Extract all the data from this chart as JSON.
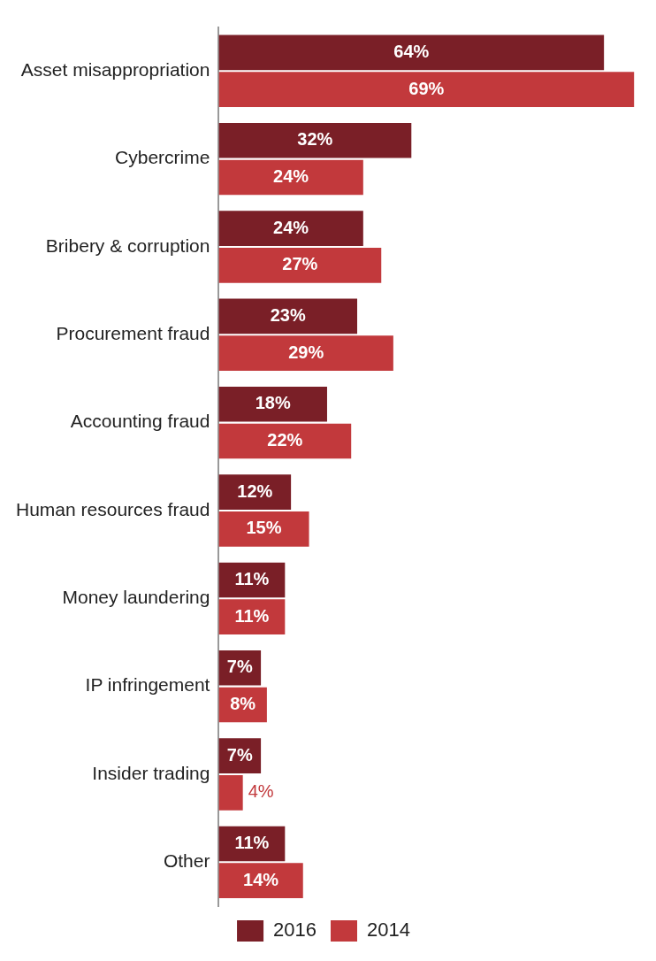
{
  "chart_data": {
    "type": "bar",
    "orientation": "horizontal",
    "categories": [
      "Asset misappropriation",
      "Cybercrime",
      "Bribery & corruption",
      "Procurement fraud",
      "Accounting fraud",
      "Human resources fraud",
      "Money laundering",
      "IP infringement",
      "Insider trading",
      "Other"
    ],
    "series": [
      {
        "name": "2016",
        "color": "#7a1f27",
        "values": [
          64,
          32,
          24,
          23,
          18,
          12,
          11,
          7,
          7,
          11
        ],
        "value_labels": [
          "64%",
          "32%",
          "24%",
          "23%",
          "18%",
          "12%",
          "11%",
          "7%",
          "7%",
          "11%"
        ]
      },
      {
        "name": "2014",
        "color": "#c2393c",
        "values": [
          69,
          24,
          27,
          29,
          22,
          15,
          11,
          8,
          4,
          14
        ],
        "value_labels": [
          "69%",
          "24%",
          "27%",
          "29%",
          "22%",
          "15%",
          "11%",
          "8%",
          "4%",
          "14%"
        ]
      }
    ],
    "tick_labels": "y",
    "legend": "bottom"
  }
}
